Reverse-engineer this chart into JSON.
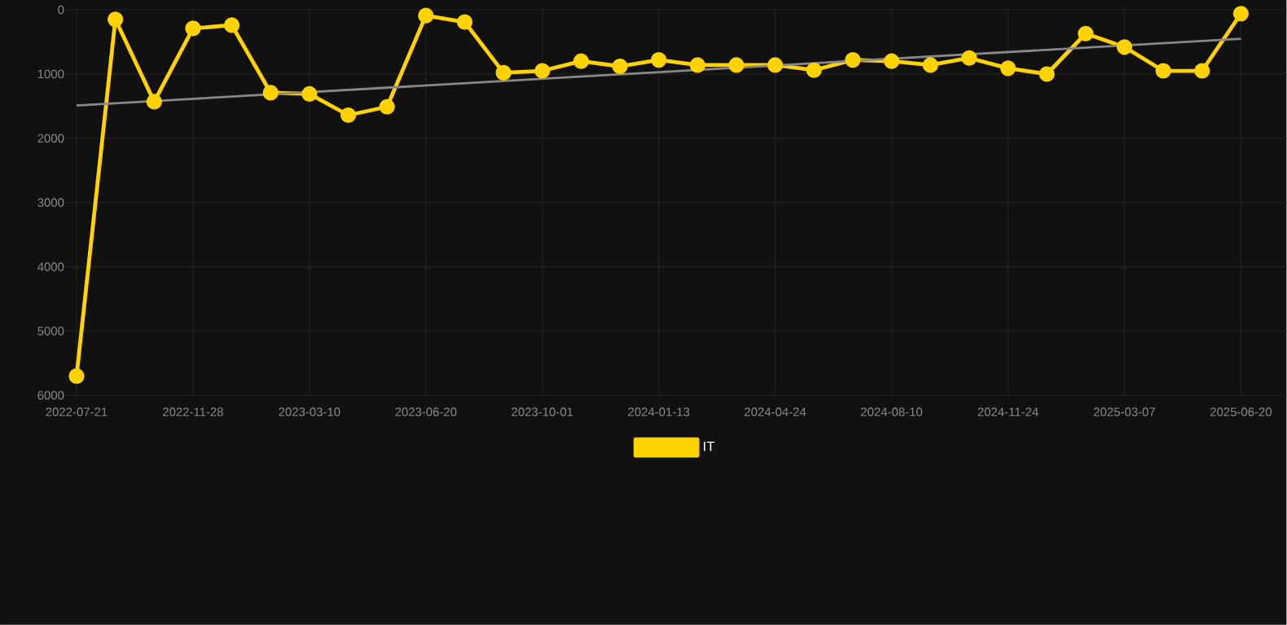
{
  "chart_data": {
    "type": "line",
    "categories": [
      "2022-07-21",
      null,
      null,
      "2022-11-28",
      null,
      null,
      "2023-03-10",
      null,
      null,
      "2023-06-20",
      null,
      null,
      "2023-10-01",
      null,
      null,
      "2024-01-13",
      null,
      null,
      "2024-04-24",
      null,
      null,
      "2024-08-10",
      null,
      null,
      "2024-11-24",
      null,
      null,
      "2025-03-07",
      null,
      null,
      "2025-06-20"
    ],
    "series": [
      {
        "name": "IT",
        "color": "#ffd200",
        "marker": "circle",
        "values": [
          5700,
          150,
          1430,
          290,
          240,
          1290,
          1310,
          1640,
          1510,
          90,
          190,
          980,
          950,
          800,
          880,
          780,
          860,
          860,
          860,
          940,
          780,
          800,
          860,
          750,
          910,
          1000,
          370,
          580,
          950,
          950,
          60
        ]
      },
      {
        "type": "line",
        "color": "#888888",
        "marker": "none",
        "values": [
          1490,
          null,
          null,
          null,
          null,
          null,
          null,
          null,
          null,
          null,
          null,
          null,
          null,
          null,
          null,
          null,
          null,
          null,
          null,
          null,
          null,
          null,
          null,
          null,
          null,
          null,
          null,
          null,
          null,
          null,
          450
        ]
      }
    ],
    "ylim": [
      6000,
      0
    ],
    "yticks": [
      0,
      1000,
      2000,
      3000,
      4000,
      5000,
      6000
    ],
    "grid": true,
    "legend": "bottom",
    "line_style": "solid"
  }
}
